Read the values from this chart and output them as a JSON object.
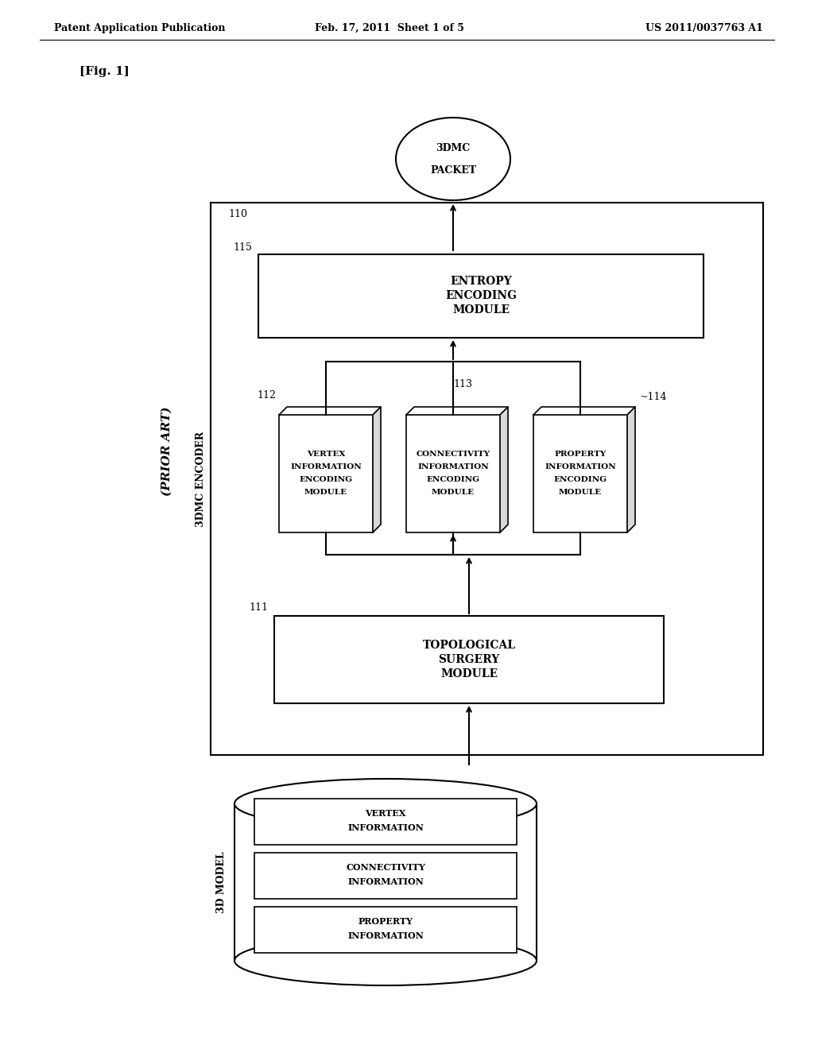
{
  "bg_color": "#ffffff",
  "header_left": "Patent Application Publication",
  "header_center": "Feb. 17, 2011  Sheet 1 of 5",
  "header_right": "US 2011/0037763 A1",
  "fig_label": "[Fig. 1]",
  "prior_art_label": "(PRIOR ART)",
  "encoder_label": "3DMC ENCODER",
  "model_label": "3D MODEL",
  "packet_text1": "3DMC",
  "packet_text2": "PACKET",
  "entropy_lines": [
    "ENTROPY",
    "ENCODING",
    "MODULE"
  ],
  "entropy_id": "115",
  "vertex_lines": [
    "VERTEX",
    "INFORMATION",
    "ENCODING",
    "MODULE"
  ],
  "vertex_id": "112",
  "conn_lines": [
    "CONNECTIVITY",
    "INFORMATION",
    "ENCODING",
    "MODULE"
  ],
  "conn_id": "113",
  "prop_lines": [
    "PROPERTY",
    "INFORMATION",
    "ENCODING",
    "MODULE"
  ],
  "prop_id": "~114",
  "topo_lines": [
    "TOPOLOGICAL",
    "SURGERY",
    "MODULE"
  ],
  "topo_id": "111",
  "db_vertex_lines": [
    "VERTEX",
    "INFORMATION"
  ],
  "db_conn_lines": [
    "CONNECTIVITY",
    "INFORMATION"
  ],
  "db_prop_lines": [
    "PROPERTY",
    "INFORMATION"
  ],
  "encoder_box_id": "110",
  "line_color": "#000000",
  "text_color": "#000000"
}
